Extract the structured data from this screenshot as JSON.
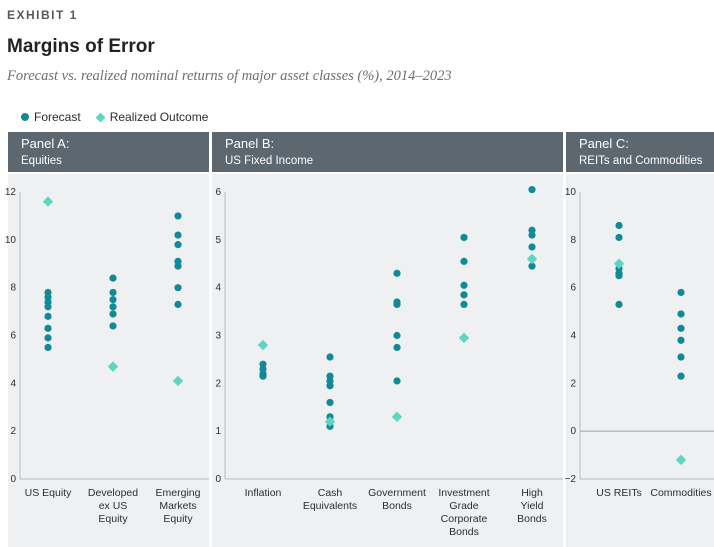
{
  "header": {
    "exhibit": "EXHIBIT 1",
    "title": "Margins of Error",
    "subtitle": "Forecast vs. realized nominal returns of major asset classes (%), 2014–2023"
  },
  "legend": {
    "forecast": "Forecast",
    "realized": "Realized Outcome"
  },
  "colors": {
    "forecast": "#0f8a96",
    "realized": "#5cd6c2",
    "panel_header": "#5c6770",
    "panel_bg": "#eef0f2",
    "zero_line": "#9aa0a6"
  },
  "chart_data": [
    {
      "type": "scatter",
      "panel_title": "Panel A:",
      "panel_subtitle": "Equities",
      "ylim": [
        0,
        12
      ],
      "yticks": [
        0,
        2,
        4,
        6,
        8,
        10,
        12
      ],
      "categories": [
        "US Equity",
        "Developed\nex US\nEquity",
        "Emerging\nMarkets\nEquity"
      ],
      "series": [
        {
          "name": "Forecast",
          "values": [
            [
              7.8,
              7.6,
              7.4,
              7.2,
              6.8,
              6.3,
              5.9,
              5.5
            ],
            [
              8.4,
              7.8,
              7.5,
              7.2,
              6.9,
              6.4
            ],
            [
              11.0,
              10.2,
              9.8,
              9.1,
              8.9,
              8.0,
              7.3
            ]
          ]
        },
        {
          "name": "Realized Outcome",
          "values": [
            11.6,
            4.7,
            4.1
          ]
        }
      ]
    },
    {
      "type": "scatter",
      "panel_title": "Panel B:",
      "panel_subtitle": "US Fixed Income",
      "ylim": [
        0,
        6
      ],
      "yticks": [
        0,
        1,
        2,
        3,
        4,
        5,
        6
      ],
      "categories": [
        "Inflation",
        "Cash\nEquivalents",
        "Government\nBonds",
        "Investment\nGrade\nCorporate\nBonds",
        "High\nYield\nBonds"
      ],
      "series": [
        {
          "name": "Forecast",
          "values": [
            [
              2.4,
              2.3,
              2.2,
              2.15
            ],
            [
              2.55,
              2.15,
              2.05,
              1.95,
              1.6,
              1.3,
              1.1
            ],
            [
              4.3,
              3.7,
              3.65,
              3.0,
              2.75,
              2.05
            ],
            [
              5.05,
              4.55,
              4.05,
              3.85,
              3.65
            ],
            [
              6.05,
              5.2,
              5.1,
              4.85,
              4.6,
              4.45
            ]
          ]
        },
        {
          "name": "Realized Outcome",
          "values": [
            2.8,
            1.2,
            1.3,
            2.95,
            4.6
          ]
        }
      ]
    },
    {
      "type": "scatter",
      "panel_title": "Panel C:",
      "panel_subtitle": "REITs and Commodities",
      "ylim": [
        -2,
        10
      ],
      "yticks": [
        -2,
        0,
        2,
        4,
        6,
        8,
        10
      ],
      "categories": [
        "US REITs",
        "Commodities"
      ],
      "series": [
        {
          "name": "Forecast",
          "values": [
            [
              8.6,
              8.1,
              6.8,
              6.6,
              6.5,
              5.3
            ],
            [
              5.8,
              4.9,
              4.3,
              3.8,
              3.1,
              2.3
            ]
          ]
        },
        {
          "name": "Realized Outcome",
          "values": [
            7.0,
            -1.2
          ]
        }
      ]
    }
  ]
}
